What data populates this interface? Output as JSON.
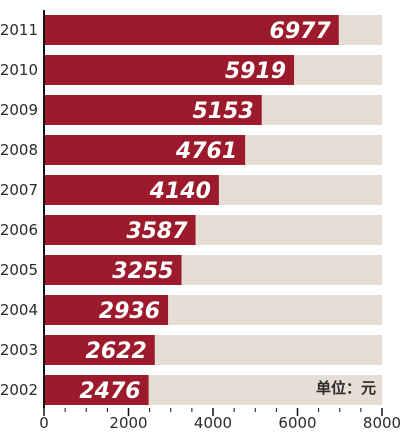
{
  "chart_data": {
    "type": "bar",
    "orientation": "horizontal",
    "categories": [
      "2011",
      "2010",
      "2009",
      "2008",
      "2007",
      "2006",
      "2005",
      "2004",
      "2003",
      "2002"
    ],
    "values": [
      6977,
      5919,
      5153,
      4761,
      4140,
      3587,
      3255,
      2936,
      2622,
      2476
    ],
    "xlim": [
      0,
      8000
    ],
    "xticks": [
      0,
      2000,
      4000,
      6000,
      8000
    ],
    "unit_label": "单位：元",
    "bar_color": "#9b1b2c",
    "track_color": "#e6ddd5",
    "grid": false
  }
}
